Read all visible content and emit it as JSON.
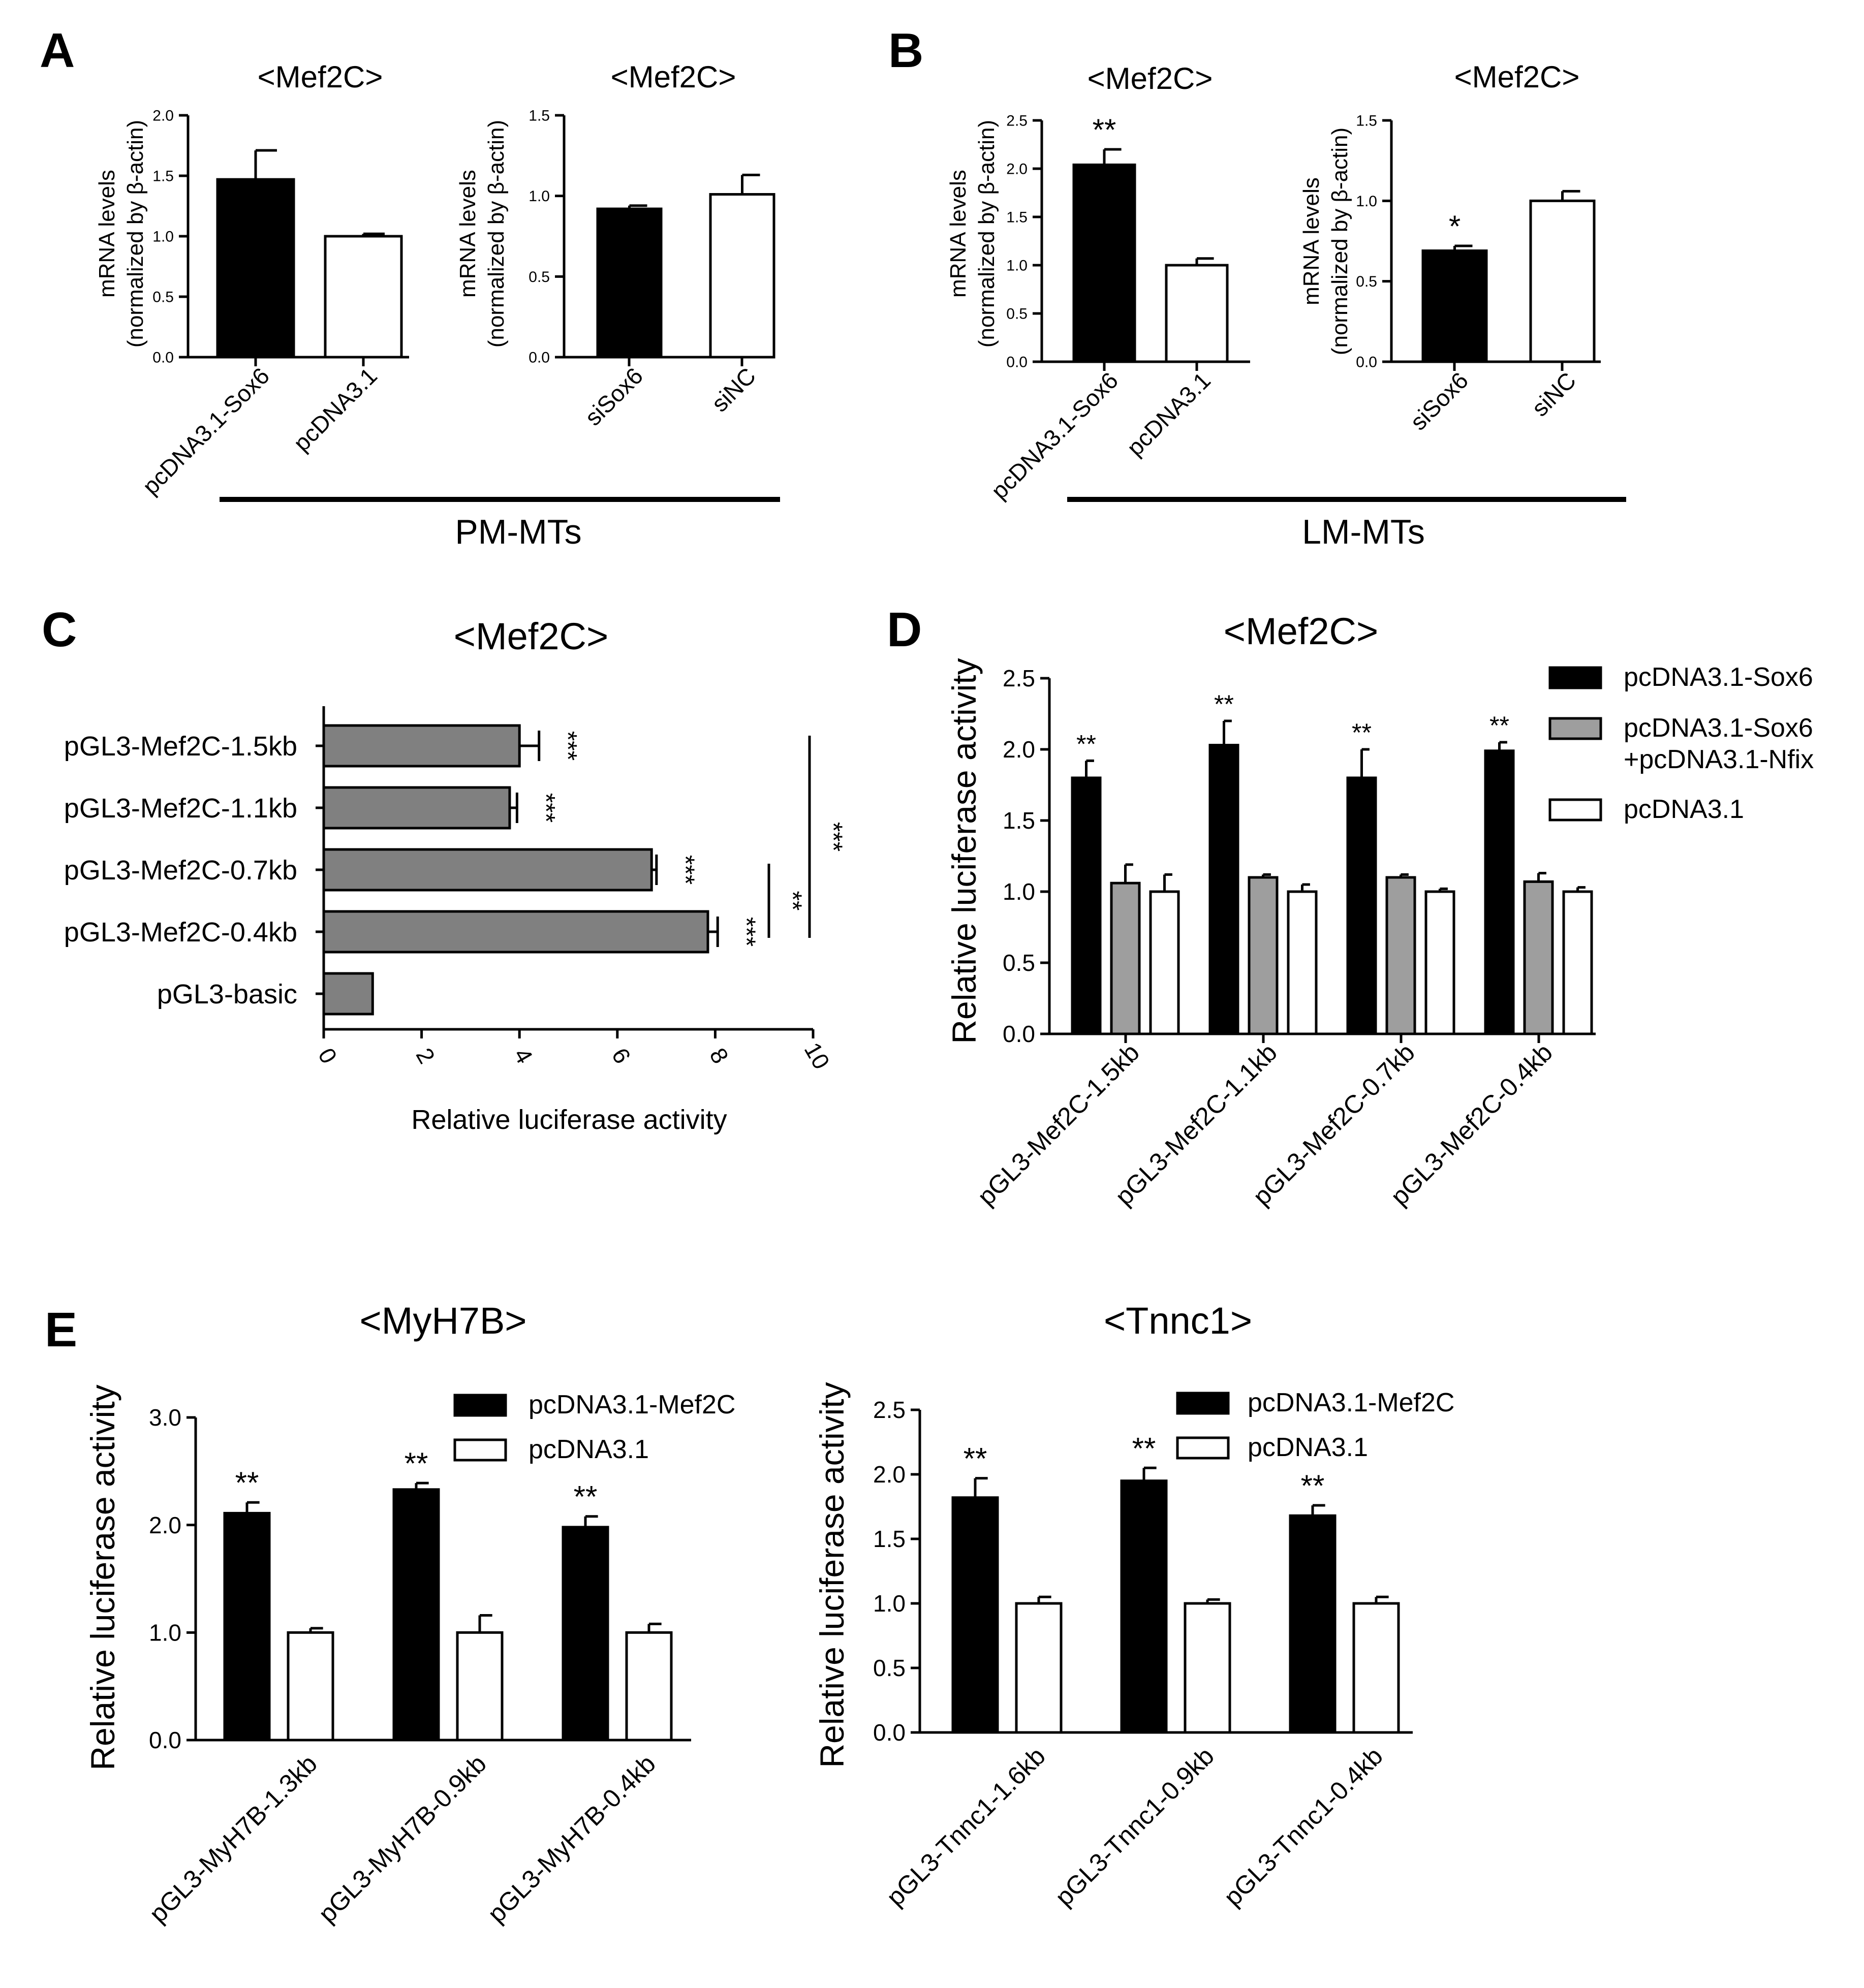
{
  "panels": {
    "a": {
      "letter": "A",
      "group_label": "PM-MTs"
    },
    "b": {
      "letter": "B",
      "group_label": "LM-MTs"
    },
    "c": {
      "letter": "C"
    },
    "d": {
      "letter": "D"
    },
    "e": {
      "letter": "E"
    }
  },
  "chart_data": [
    {
      "id": "A1",
      "type": "bar",
      "title": "<Mef2C>",
      "ylabel_lines": [
        "mRNA levels",
        "(normalized by β-actin)"
      ],
      "ylim": [
        0,
        2.0
      ],
      "yticks": [
        "0.0",
        "0.5",
        "1.0",
        "1.5",
        "2.0"
      ],
      "ytick_values": [
        0,
        0.5,
        1.0,
        1.5,
        2.0
      ],
      "categories": [
        "pcDNA3.1-Sox6",
        "pcDNA3.1"
      ],
      "values": [
        1.47,
        1.0
      ],
      "errors": [
        0.24,
        0.02
      ],
      "colors": [
        "#000000",
        "#ffffff"
      ],
      "sig": [
        "",
        ""
      ]
    },
    {
      "id": "A2",
      "type": "bar",
      "title": "<Mef2C>",
      "ylabel_lines": [
        "mRNA levels",
        "(normalized by β-actin)"
      ],
      "ylim": [
        0,
        1.5
      ],
      "yticks": [
        "0.0",
        "0.5",
        "1.0",
        "1.5"
      ],
      "ytick_values": [
        0,
        0.5,
        1.0,
        1.5
      ],
      "categories": [
        "siSox6",
        "siNC"
      ],
      "values": [
        0.92,
        1.01
      ],
      "errors": [
        0.02,
        0.12
      ],
      "colors": [
        "#000000",
        "#ffffff"
      ],
      "sig": [
        "",
        ""
      ]
    },
    {
      "id": "B1",
      "type": "bar",
      "title": "<Mef2C>",
      "ylabel_lines": [
        "mRNA levels",
        "(normalized by β-actin)"
      ],
      "ylim": [
        0,
        2.5
      ],
      "yticks": [
        "0.0",
        "0.5",
        "1.0",
        "1.5",
        "2.0",
        "2.5"
      ],
      "ytick_values": [
        0,
        0.5,
        1.0,
        1.5,
        2.0,
        2.5
      ],
      "categories": [
        "pcDNA3.1-Sox6",
        "pcDNA3.1"
      ],
      "values": [
        2.04,
        1.0
      ],
      "errors": [
        0.16,
        0.07
      ],
      "colors": [
        "#000000",
        "#ffffff"
      ],
      "sig": [
        "**",
        ""
      ]
    },
    {
      "id": "B2",
      "type": "bar",
      "title": "<Mef2C>",
      "ylabel_lines": [
        "mRNA levels",
        "(normalized by β-actin)"
      ],
      "ylim": [
        0,
        1.5
      ],
      "yticks": [
        "0.0",
        "0.5",
        "1.0",
        "1.5"
      ],
      "ytick_values": [
        0,
        0.5,
        1.0,
        1.5
      ],
      "categories": [
        "siSox6",
        "siNC"
      ],
      "values": [
        0.69,
        1.0
      ],
      "errors": [
        0.03,
        0.06
      ],
      "colors": [
        "#000000",
        "#ffffff"
      ],
      "sig": [
        "*",
        ""
      ]
    },
    {
      "id": "C",
      "type": "bar",
      "orientation": "horizontal",
      "title": "<Mef2C>",
      "xlabel": "Relative luciferase activity",
      "xlim": [
        0,
        10
      ],
      "xticks": [
        "0",
        "2",
        "4",
        "6",
        "8",
        "10"
      ],
      "xtick_values": [
        0,
        2,
        4,
        6,
        8,
        10
      ],
      "categories": [
        "pGL3-Mef2C-1.5kb",
        "pGL3-Mef2C-1.1kb",
        "pGL3-Mef2C-0.7kb",
        "pGL3-Mef2C-0.4kb",
        "pGL3-basic"
      ],
      "values": [
        4.0,
        3.8,
        6.7,
        7.85,
        1.0
      ],
      "errors": [
        0.4,
        0.15,
        0.1,
        0.2,
        0.0
      ],
      "sig": [
        "***",
        "***",
        "***",
        "***",
        ""
      ],
      "brackets": [
        {
          "from": "pGL3-Mef2C-0.7kb",
          "to": "pGL3-Mef2C-0.4kb",
          "label": "**"
        },
        {
          "from": "pGL3-Mef2C-1.5kb",
          "to": "pGL3-Mef2C-0.4kb",
          "label": "***"
        }
      ],
      "bar_color": "#808080"
    },
    {
      "id": "D",
      "type": "bar",
      "title": "<Mef2C>",
      "ylabel": "Relative luciferase activity",
      "ylim": [
        0,
        2.5
      ],
      "yticks": [
        "0.0",
        "0.5",
        "1.0",
        "1.5",
        "2.0",
        "2.5"
      ],
      "ytick_values": [
        0,
        0.5,
        1.0,
        1.5,
        2.0,
        2.5
      ],
      "categories": [
        "pGL3-Mef2C-1.5kb",
        "pGL3-Mef2C-1.1kb",
        "pGL3-Mef2C-0.7kb",
        "pGL3-Mef2C-0.4kb"
      ],
      "series": [
        {
          "name": "pcDNA3.1-Sox6",
          "color": "#000000",
          "values": [
            1.8,
            2.03,
            1.8,
            1.99
          ],
          "errors": [
            0.12,
            0.17,
            0.2,
            0.06
          ],
          "sig": [
            "**",
            "**",
            "**",
            "**"
          ]
        },
        {
          "name": "pcDNA3.1-Sox6\n+pcDNA3.1-Nfix",
          "legend_lines": [
            "pcDNA3.1-Sox6",
            "+pcDNA3.1-Nfix"
          ],
          "color": "#9e9e9e",
          "values": [
            1.06,
            1.1,
            1.1,
            1.07
          ],
          "errors": [
            0.13,
            0.02,
            0.02,
            0.06
          ],
          "sig": [
            "",
            "",
            "",
            ""
          ]
        },
        {
          "name": "pcDNA3.1",
          "color": "#ffffff",
          "values": [
            1.0,
            1.0,
            1.0,
            1.0
          ],
          "errors": [
            0.12,
            0.05,
            0.02,
            0.03
          ],
          "sig": [
            "",
            "",
            "",
            ""
          ]
        }
      ]
    },
    {
      "id": "E1",
      "type": "bar",
      "title": "<MyH7B>",
      "ylabel": "Relative luciferase activity",
      "ylim": [
        0,
        3.0
      ],
      "yticks": [
        "0.0",
        "1.0",
        "2.0",
        "3.0"
      ],
      "ytick_values": [
        0,
        1.0,
        2.0,
        3.0
      ],
      "categories": [
        "pGL3-MyH7B-1.3kb",
        "pGL3-MyH7B-0.9kb",
        "pGL3-MyH7B-0.4kb"
      ],
      "series": [
        {
          "name": "pcDNA3.1-Mef2C",
          "color": "#000000",
          "values": [
            2.11,
            2.33,
            1.98
          ],
          "errors": [
            0.1,
            0.06,
            0.1
          ],
          "sig": [
            "**",
            "**",
            "**"
          ]
        },
        {
          "name": "pcDNA3.1",
          "color": "#ffffff",
          "values": [
            1.0,
            1.0,
            1.0
          ],
          "errors": [
            0.04,
            0.16,
            0.08
          ],
          "sig": [
            "",
            "",
            ""
          ]
        }
      ]
    },
    {
      "id": "E2",
      "type": "bar",
      "title": "<Tnnc1>",
      "ylabel": "Relative luciferase activity",
      "ylim": [
        0,
        2.5
      ],
      "yticks": [
        "0.0",
        "0.5",
        "1.0",
        "1.5",
        "2.0",
        "2.5"
      ],
      "ytick_values": [
        0,
        0.5,
        1.0,
        1.5,
        2.0,
        2.5
      ],
      "categories": [
        "pGL3-Tnnc1-1.6kb",
        "pGL3-Tnnc1-0.9kb",
        "pGL3-Tnnc1-0.4kb"
      ],
      "series": [
        {
          "name": "pcDNA3.1-Mef2C",
          "color": "#000000",
          "values": [
            1.82,
            1.95,
            1.68
          ],
          "errors": [
            0.15,
            0.1,
            0.08
          ],
          "sig": [
            "**",
            "**",
            "**"
          ]
        },
        {
          "name": "pcDNA3.1",
          "color": "#ffffff",
          "values": [
            1.0,
            1.0,
            1.0
          ],
          "errors": [
            0.05,
            0.03,
            0.05
          ],
          "sig": [
            "",
            "",
            ""
          ]
        }
      ]
    }
  ]
}
